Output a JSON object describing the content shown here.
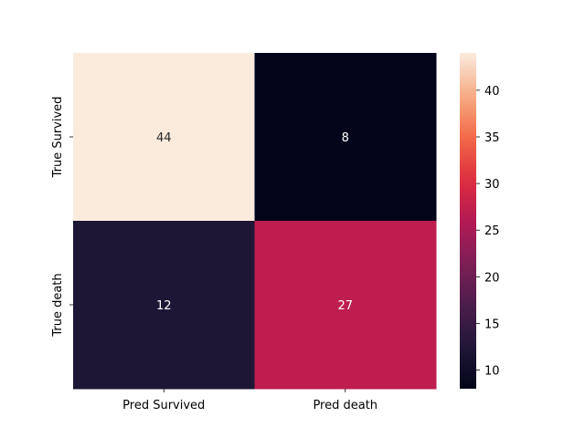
{
  "chart_data": {
    "type": "heatmap",
    "title": "",
    "xlabel": "",
    "ylabel": "",
    "x_categories": [
      "Pred Survived",
      "Pred death"
    ],
    "y_categories": [
      "True Survived",
      "True death"
    ],
    "values": [
      [
        44,
        8
      ],
      [
        12,
        27
      ]
    ],
    "colorbar": {
      "min": 8,
      "max": 44,
      "ticks": [
        10,
        15,
        20,
        25,
        30,
        35,
        40
      ],
      "colormap": "rocket"
    },
    "annotate": true,
    "grid": false
  }
}
